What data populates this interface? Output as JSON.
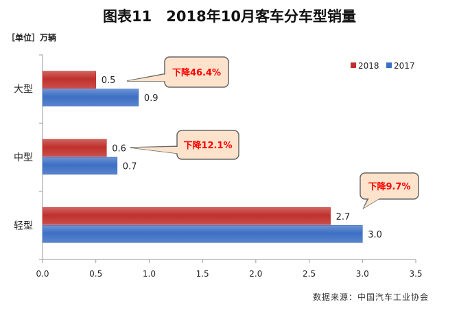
{
  "title": "图表11　2018年10月客车分车型销量",
  "unit": "［单位］万辆",
  "source": "数据来源：中国汽车工业协会",
  "chart_data": {
    "type": "bar",
    "orientation": "horizontal",
    "categories": [
      "大型",
      "中型",
      "轻型"
    ],
    "series": [
      {
        "name": "2018",
        "values": [
          0.5,
          0.6,
          2.7
        ],
        "color": "#c0302c"
      },
      {
        "name": "2017",
        "values": [
          0.9,
          0.7,
          3.0
        ],
        "color": "#3d6fc4"
      }
    ],
    "xlim": [
      0,
      3.5
    ],
    "xticks": [
      "0.0",
      "0.5",
      "1.0",
      "1.5",
      "2.0",
      "2.5",
      "3.0",
      "3.5"
    ],
    "grid": false,
    "legend": "top-right",
    "annotations": [
      "下降46.4%",
      "下降12.1%",
      "下降9.7%"
    ],
    "annotation_color": "#ff0000",
    "annotation_fill": "#fde3cc"
  }
}
